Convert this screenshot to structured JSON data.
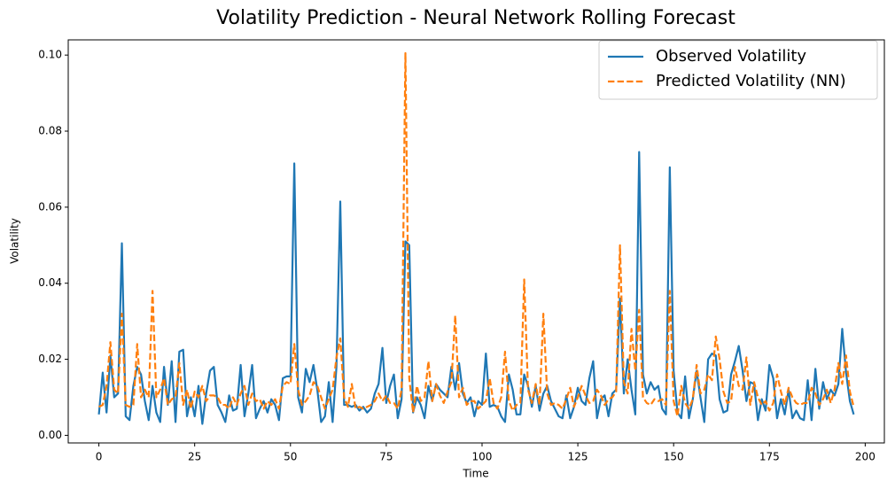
{
  "chart_data": {
    "type": "line",
    "title": "Volatility Prediction - Neural Network Rolling Forecast",
    "xlabel": "Time",
    "ylabel": "Volatility",
    "x": [
      0,
      1,
      2,
      3,
      4,
      5,
      6,
      7,
      8,
      9,
      10,
      11,
      12,
      13,
      14,
      15,
      16,
      17,
      18,
      19,
      20,
      21,
      22,
      23,
      24,
      25,
      26,
      27,
      28,
      29,
      30,
      31,
      32,
      33,
      34,
      35,
      36,
      37,
      38,
      39,
      40,
      41,
      42,
      43,
      44,
      45,
      46,
      47,
      48,
      49,
      50,
      51,
      52,
      53,
      54,
      55,
      56,
      57,
      58,
      59,
      60,
      61,
      62,
      63,
      64,
      65,
      66,
      67,
      68,
      69,
      70,
      71,
      72,
      73,
      74,
      75,
      76,
      77,
      78,
      79,
      80,
      81,
      82,
      83,
      84,
      85,
      86,
      87,
      88,
      89,
      90,
      91,
      92,
      93,
      94,
      95,
      96,
      97,
      98,
      99,
      100,
      101,
      102,
      103,
      104,
      105,
      106,
      107,
      108,
      109,
      110,
      111,
      112,
      113,
      114,
      115,
      116,
      117,
      118,
      119,
      120,
      121,
      122,
      123,
      124,
      125,
      126,
      127,
      128,
      129,
      130,
      131,
      132,
      133,
      134,
      135,
      136,
      137,
      138,
      139,
      140,
      141,
      142,
      143,
      144,
      145,
      146,
      147,
      148,
      149,
      150,
      151,
      152,
      153,
      154,
      155,
      156,
      157,
      158,
      159,
      160,
      161,
      162,
      163,
      164,
      165,
      166,
      167,
      168,
      169,
      170,
      171,
      172,
      173,
      174,
      175,
      176,
      177,
      178,
      179,
      180,
      181,
      182,
      183,
      184,
      185,
      186,
      187,
      188,
      189,
      190,
      191,
      192,
      193,
      194,
      195,
      196,
      197
    ],
    "series": [
      {
        "name": "Observed Volatility",
        "color": "#1f77b4",
        "linestyle": "solid",
        "values": [
          0.0055,
          0.0165,
          0.006,
          0.021,
          0.01,
          0.011,
          0.0505,
          0.005,
          0.004,
          0.013,
          0.018,
          0.016,
          0.009,
          0.004,
          0.013,
          0.006,
          0.0035,
          0.018,
          0.008,
          0.0195,
          0.0035,
          0.022,
          0.0225,
          0.005,
          0.01,
          0.005,
          0.013,
          0.003,
          0.011,
          0.017,
          0.018,
          0.008,
          0.006,
          0.0035,
          0.0105,
          0.0065,
          0.007,
          0.0185,
          0.005,
          0.011,
          0.0185,
          0.0045,
          0.007,
          0.009,
          0.006,
          0.0095,
          0.008,
          0.004,
          0.015,
          0.0155,
          0.0155,
          0.0715,
          0.01,
          0.006,
          0.0175,
          0.014,
          0.0185,
          0.012,
          0.0035,
          0.005,
          0.014,
          0.0035,
          0.018,
          0.0615,
          0.008,
          0.008,
          0.0075,
          0.008,
          0.0065,
          0.0075,
          0.006,
          0.007,
          0.011,
          0.0135,
          0.023,
          0.0085,
          0.013,
          0.016,
          0.0045,
          0.0095,
          0.051,
          0.05,
          0.006,
          0.01,
          0.008,
          0.0045,
          0.013,
          0.009,
          0.0135,
          0.012,
          0.011,
          0.01,
          0.018,
          0.012,
          0.019,
          0.011,
          0.0085,
          0.01,
          0.005,
          0.009,
          0.008,
          0.0215,
          0.0075,
          0.008,
          0.0075,
          0.005,
          0.0035,
          0.016,
          0.012,
          0.0055,
          0.0055,
          0.016,
          0.013,
          0.0075,
          0.013,
          0.0065,
          0.011,
          0.013,
          0.009,
          0.007,
          0.005,
          0.0045,
          0.0105,
          0.0045,
          0.0075,
          0.0125,
          0.009,
          0.008,
          0.015,
          0.0195,
          0.0045,
          0.0095,
          0.0105,
          0.005,
          0.011,
          0.012,
          0.036,
          0.011,
          0.02,
          0.012,
          0.0055,
          0.0745,
          0.016,
          0.011,
          0.014,
          0.012,
          0.013,
          0.007,
          0.0055,
          0.0705,
          0.017,
          0.006,
          0.0045,
          0.0155,
          0.0045,
          0.0095,
          0.017,
          0.01,
          0.0035,
          0.02,
          0.0215,
          0.021,
          0.0095,
          0.006,
          0.0065,
          0.016,
          0.0195,
          0.0235,
          0.017,
          0.009,
          0.014,
          0.0135,
          0.004,
          0.0095,
          0.0065,
          0.0185,
          0.015,
          0.0045,
          0.0095,
          0.0055,
          0.012,
          0.0045,
          0.0065,
          0.0045,
          0.004,
          0.0145,
          0.004,
          0.0175,
          0.007,
          0.014,
          0.0095,
          0.012,
          0.0105,
          0.0135,
          0.028,
          0.0165,
          0.009,
          0.0055
        ]
      },
      {
        "name": "Predicted Volatility (NN)",
        "color": "#ff7f0e",
        "linestyle": "dashed",
        "values": [
          0.0075,
          0.008,
          0.013,
          0.0245,
          0.012,
          0.011,
          0.032,
          0.008,
          0.0075,
          0.008,
          0.024,
          0.01,
          0.012,
          0.01,
          0.038,
          0.01,
          0.012,
          0.015,
          0.008,
          0.0095,
          0.01,
          0.019,
          0.008,
          0.012,
          0.007,
          0.0115,
          0.01,
          0.013,
          0.009,
          0.0105,
          0.0105,
          0.01,
          0.008,
          0.008,
          0.007,
          0.01,
          0.008,
          0.011,
          0.013,
          0.008,
          0.011,
          0.009,
          0.0095,
          0.007,
          0.009,
          0.008,
          0.0095,
          0.007,
          0.013,
          0.014,
          0.0135,
          0.024,
          0.012,
          0.008,
          0.009,
          0.0105,
          0.014,
          0.013,
          0.01,
          0.007,
          0.0095,
          0.012,
          0.0205,
          0.0255,
          0.01,
          0.0075,
          0.0135,
          0.007,
          0.0075,
          0.007,
          0.0075,
          0.008,
          0.009,
          0.011,
          0.009,
          0.0105,
          0.0085,
          0.0085,
          0.007,
          0.012,
          0.1005,
          0.015,
          0.006,
          0.013,
          0.009,
          0.01,
          0.0195,
          0.009,
          0.0135,
          0.0105,
          0.0085,
          0.0115,
          0.014,
          0.0315,
          0.01,
          0.0125,
          0.008,
          0.009,
          0.009,
          0.007,
          0.008,
          0.009,
          0.015,
          0.0085,
          0.007,
          0.01,
          0.022,
          0.009,
          0.0065,
          0.008,
          0.0085,
          0.041,
          0.012,
          0.0085,
          0.0135,
          0.008,
          0.032,
          0.011,
          0.008,
          0.0085,
          0.008,
          0.007,
          0.0095,
          0.0125,
          0.0075,
          0.01,
          0.013,
          0.0105,
          0.0085,
          0.009,
          0.012,
          0.0105,
          0.008,
          0.0095,
          0.01,
          0.0115,
          0.05,
          0.014,
          0.011,
          0.028,
          0.017,
          0.033,
          0.01,
          0.0085,
          0.008,
          0.0095,
          0.009,
          0.0095,
          0.008,
          0.038,
          0.009,
          0.005,
          0.013,
          0.0085,
          0.007,
          0.0095,
          0.0185,
          0.011,
          0.012,
          0.016,
          0.0145,
          0.026,
          0.02,
          0.0115,
          0.0085,
          0.009,
          0.018,
          0.013,
          0.012,
          0.0205,
          0.008,
          0.014,
          0.01,
          0.008,
          0.009,
          0.0065,
          0.0085,
          0.016,
          0.0115,
          0.008,
          0.0125,
          0.01,
          0.0085,
          0.008,
          0.0085,
          0.0085,
          0.0125,
          0.011,
          0.008,
          0.0095,
          0.012,
          0.0085,
          0.012,
          0.019,
          0.0135,
          0.021,
          0.0115,
          0.0075
        ]
      }
    ],
    "xlim": [
      -8,
      205
    ],
    "xticks": [
      0,
      25,
      50,
      75,
      100,
      125,
      150,
      175,
      200
    ],
    "ylim": [
      -0.002,
      0.104
    ],
    "yticks": [
      {
        "value": 0,
        "label": "0.00"
      },
      {
        "value": 0.02,
        "label": "0.02"
      },
      {
        "value": 0.04,
        "label": "0.04"
      },
      {
        "value": 0.06,
        "label": "0.06"
      },
      {
        "value": 0.08,
        "label": "0.08"
      },
      {
        "value": 0.1,
        "label": "0.10"
      }
    ],
    "grid": false,
    "legend": "upper right"
  }
}
